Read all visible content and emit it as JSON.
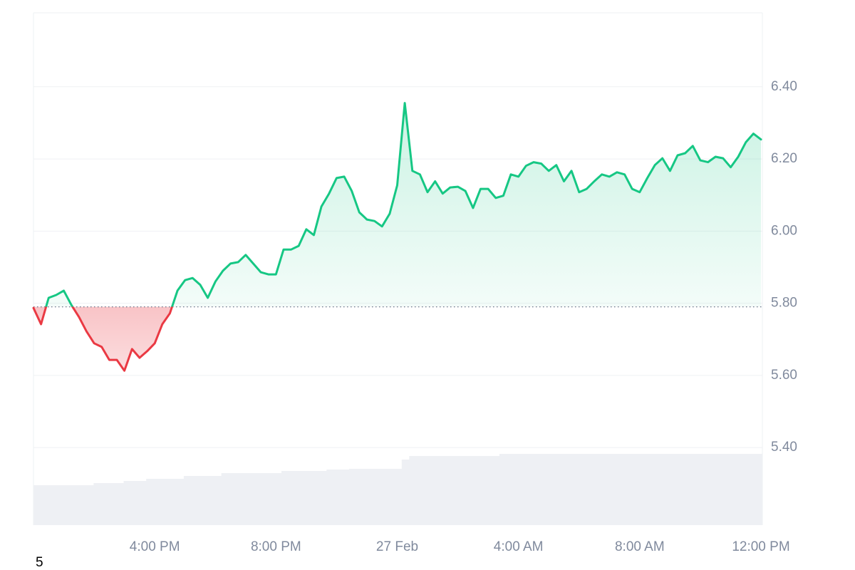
{
  "chart_data": {
    "type": "line",
    "categories": [
      null,
      null,
      null,
      null,
      null,
      null,
      null,
      null,
      null,
      null,
      null,
      null,
      null,
      null,
      null,
      null,
      "4:00 PM",
      null,
      null,
      null,
      null,
      null,
      null,
      null,
      null,
      null,
      null,
      null,
      null,
      null,
      null,
      null,
      "8:00 PM",
      null,
      null,
      null,
      null,
      null,
      null,
      null,
      null,
      null,
      null,
      null,
      null,
      null,
      null,
      null,
      "27 Feb",
      null,
      null,
      null,
      null,
      null,
      null,
      null,
      null,
      null,
      null,
      null,
      null,
      null,
      null,
      null,
      "4:00 AM",
      null,
      null,
      null,
      null,
      null,
      null,
      null,
      null,
      null,
      null,
      null,
      null,
      null,
      null,
      null,
      "8:00 AM",
      null,
      null,
      null,
      null,
      null,
      null,
      null,
      null,
      null,
      null,
      null,
      null,
      null,
      null,
      null,
      "12:00 PM"
    ],
    "values": [
      5.787,
      5.742,
      5.815,
      5.823,
      5.835,
      5.795,
      5.762,
      5.722,
      5.689,
      5.679,
      5.643,
      5.643,
      5.613,
      5.673,
      5.649,
      5.667,
      5.689,
      5.742,
      5.772,
      5.835,
      5.864,
      5.87,
      5.851,
      5.815,
      5.86,
      5.89,
      5.91,
      5.914,
      5.934,
      5.91,
      5.886,
      5.88,
      5.88,
      5.949,
      5.949,
      5.959,
      6.005,
      5.989,
      6.068,
      6.104,
      6.147,
      6.151,
      6.111,
      6.052,
      6.032,
      6.028,
      6.013,
      6.048,
      6.127,
      6.355,
      6.167,
      6.157,
      6.108,
      6.138,
      6.104,
      6.121,
      6.123,
      6.111,
      6.064,
      6.117,
      6.117,
      6.092,
      6.098,
      6.157,
      6.151,
      6.181,
      6.191,
      6.187,
      6.167,
      6.183,
      6.138,
      6.167,
      6.108,
      6.117,
      6.138,
      6.157,
      6.151,
      6.163,
      6.157,
      6.117,
      6.108,
      6.147,
      6.183,
      6.202,
      6.167,
      6.21,
      6.216,
      6.236,
      6.196,
      6.191,
      6.206,
      6.202,
      6.177,
      6.206,
      6.246,
      6.27,
      6.254
    ],
    "volume": [
      56,
      56,
      56,
      56,
      56,
      56,
      56,
      56,
      59,
      59,
      59,
      59,
      62,
      62,
      62,
      65,
      65,
      65,
      65,
      65,
      69,
      69,
      69,
      69,
      69,
      73,
      73,
      73,
      73,
      73,
      73,
      73,
      73,
      76,
      76,
      76,
      76,
      76,
      76,
      78,
      78,
      78,
      79,
      79,
      79,
      79,
      79,
      79,
      79,
      92,
      97,
      97,
      97,
      97,
      97,
      97,
      97,
      97,
      97,
      97,
      97,
      97,
      100,
      100,
      100,
      100,
      100,
      100,
      100,
      100,
      100,
      100,
      100,
      100,
      100,
      100,
      100,
      100,
      100,
      100,
      100,
      100,
      100,
      100,
      100,
      100,
      100,
      100,
      100,
      100,
      100,
      100,
      100,
      100,
      100,
      100,
      100
    ],
    "reference_line": 5.79,
    "up_color": "#16c784",
    "down_color": "#ea3943",
    "volume_color": "#eef0f4",
    "ylim": [
      5.185,
      6.605
    ],
    "yticks": [
      {
        "value": 5.4,
        "label": "5.40"
      },
      {
        "value": 5.6,
        "label": "5.60"
      },
      {
        "value": 5.8,
        "label": "5.80"
      },
      {
        "value": 6.0,
        "label": "6.00"
      },
      {
        "value": 6.2,
        "label": "6.20"
      },
      {
        "value": 6.4,
        "label": "6.40"
      }
    ],
    "grid": true
  },
  "footnote": "5"
}
